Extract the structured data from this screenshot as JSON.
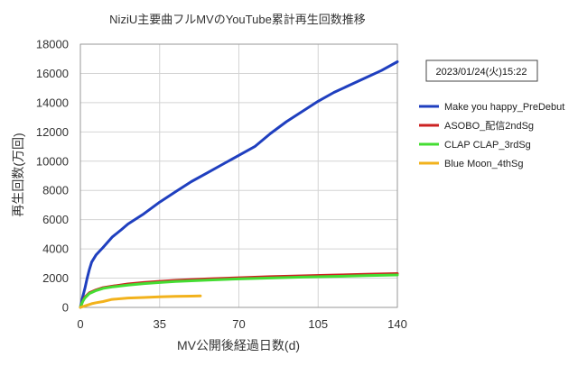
{
  "chart_data": {
    "type": "line",
    "title": "NiziU主要曲フルMVのYouTube累計再生回数推移",
    "xlabel": "MV公開後経過日数(d)",
    "ylabel": "再生回数(万回)",
    "xlim": [
      0,
      140
    ],
    "ylim": [
      0,
      18000
    ],
    "xticks": [
      0,
      35,
      70,
      105,
      140
    ],
    "yticks": [
      0,
      2000,
      4000,
      6000,
      8000,
      10000,
      12000,
      14000,
      16000,
      18000
    ],
    "grid": true,
    "legend_position": "right",
    "date_label": "2023/01/24(火)15:22",
    "series": [
      {
        "name": "Make you happy_PreDebut",
        "color": "#1f3fbf",
        "x": [
          0,
          1,
          2,
          3,
          4,
          5,
          7,
          10,
          14,
          18,
          21,
          28,
          35,
          42,
          49,
          56,
          63,
          70,
          77,
          84,
          91,
          98,
          105,
          112,
          119,
          126,
          133,
          140
        ],
        "y": [
          0,
          700,
          1300,
          2000,
          2600,
          3100,
          3600,
          4100,
          4800,
          5300,
          5700,
          6400,
          7200,
          7900,
          8600,
          9200,
          9800,
          10400,
          11000,
          11900,
          12700,
          13400,
          14100,
          14700,
          15200,
          15700,
          16200,
          16800
        ]
      },
      {
        "name": "ASOBO_配信2ndSg",
        "color": "#cc2222",
        "x": [
          0,
          1,
          2,
          4,
          7,
          10,
          14,
          21,
          28,
          35,
          42,
          56,
          70,
          84,
          98,
          112,
          126,
          140
        ],
        "y": [
          0,
          400,
          700,
          1000,
          1200,
          1350,
          1450,
          1600,
          1700,
          1780,
          1850,
          1950,
          2030,
          2100,
          2160,
          2210,
          2260,
          2310
        ]
      },
      {
        "name": "CLAP CLAP_3rdSg",
        "color": "#44dd33",
        "x": [
          0,
          1,
          2,
          4,
          7,
          10,
          14,
          21,
          28,
          35,
          42,
          56,
          70,
          84,
          98,
          112,
          126,
          140
        ],
        "y": [
          0,
          400,
          650,
          950,
          1150,
          1300,
          1400,
          1530,
          1630,
          1700,
          1770,
          1870,
          1950,
          2010,
          2070,
          2120,
          2170,
          2220
        ]
      },
      {
        "name": "Blue Moon_4thSg",
        "color": "#f2b21c",
        "x": [
          0,
          1,
          3,
          5,
          7,
          10,
          14,
          21,
          28,
          35,
          42,
          49,
          53
        ],
        "y": [
          0,
          50,
          150,
          250,
          320,
          400,
          550,
          640,
          680,
          720,
          750,
          770,
          790
        ]
      }
    ]
  }
}
